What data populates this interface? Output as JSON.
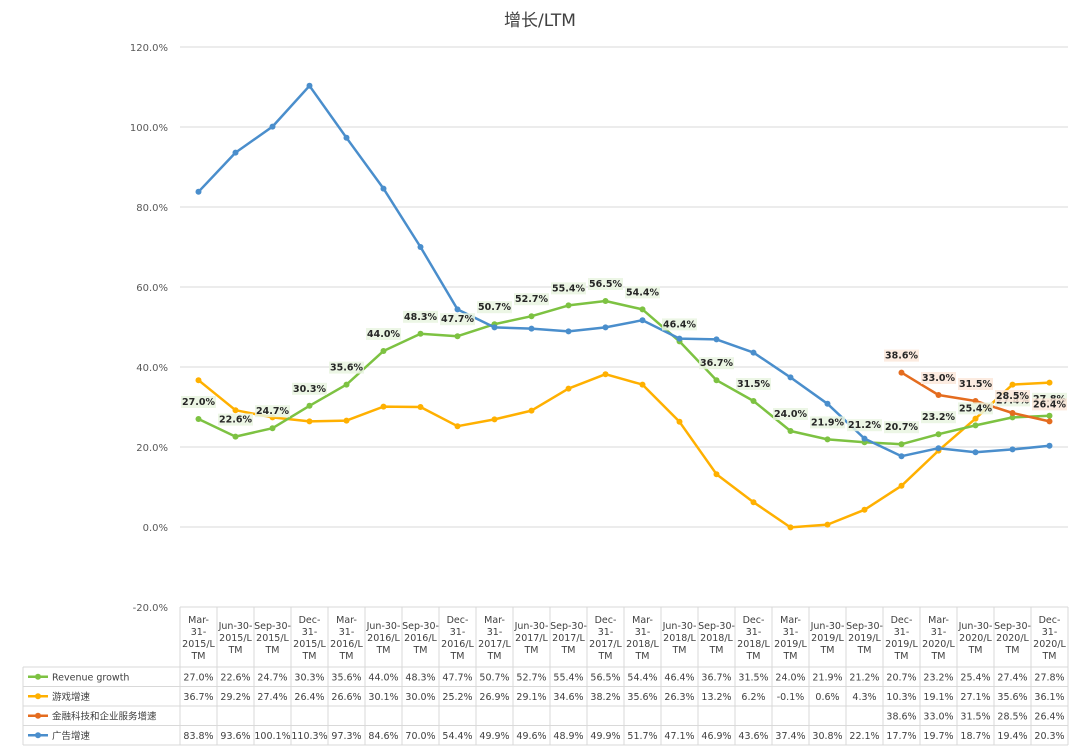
{
  "chart_data": {
    "type": "line",
    "title": "增长/LTM",
    "ylim": [
      -20,
      120
    ],
    "y_ticks": [
      "-20.0%",
      "0.0%",
      "20.0%",
      "40.0%",
      "60.0%",
      "80.0%",
      "100.0%",
      "120.0%"
    ],
    "y_tick_values": [
      -20,
      0,
      20,
      40,
      60,
      80,
      100,
      120
    ],
    "grid": true,
    "legend": "data-table-bottom",
    "categories": [
      [
        "Mar-",
        "31-",
        "2015/L",
        "TM"
      ],
      [
        "Jun-30-",
        "2015/L",
        "TM"
      ],
      [
        "Sep-30-",
        "2015/L",
        "TM"
      ],
      [
        "Dec-",
        "31-",
        "2015/L",
        "TM"
      ],
      [
        "Mar-",
        "31-",
        "2016/L",
        "TM"
      ],
      [
        "Jun-30-",
        "2016/L",
        "TM"
      ],
      [
        "Sep-30-",
        "2016/L",
        "TM"
      ],
      [
        "Dec-",
        "31-",
        "2016/L",
        "TM"
      ],
      [
        "Mar-",
        "31-",
        "2017/L",
        "TM"
      ],
      [
        "Jun-30-",
        "2017/L",
        "TM"
      ],
      [
        "Sep-30-",
        "2017/L",
        "TM"
      ],
      [
        "Dec-",
        "31-",
        "2017/L",
        "TM"
      ],
      [
        "Mar-",
        "31-",
        "2018/L",
        "TM"
      ],
      [
        "Jun-30-",
        "2018/L",
        "TM"
      ],
      [
        "Sep-30-",
        "2018/L",
        "TM"
      ],
      [
        "Dec-",
        "31-",
        "2018/L",
        "TM"
      ],
      [
        "Mar-",
        "31-",
        "2019/L",
        "TM"
      ],
      [
        "Jun-30-",
        "2019/L",
        "TM"
      ],
      [
        "Sep-30-",
        "2019/L",
        "TM"
      ],
      [
        "Dec-",
        "31-",
        "2019/L",
        "TM"
      ],
      [
        "Mar-",
        "31-",
        "2020/L",
        "TM"
      ],
      [
        "Jun-30-",
        "2020/L",
        "TM"
      ],
      [
        "Sep-30-",
        "2020/L",
        "TM"
      ],
      [
        "Dec-",
        "31-",
        "2020/L",
        "TM"
      ]
    ],
    "series": [
      {
        "name": "Revenue growth",
        "color": "#7DC242",
        "labeled": true,
        "values": [
          27.0,
          22.6,
          24.7,
          30.3,
          35.6,
          44.0,
          48.3,
          47.7,
          50.7,
          52.7,
          55.4,
          56.5,
          54.4,
          46.4,
          36.7,
          31.5,
          24.0,
          21.9,
          21.2,
          20.7,
          23.2,
          25.4,
          27.4,
          27.8
        ],
        "display": [
          "27.0%",
          "22.6%",
          "24.7%",
          "30.3%",
          "35.6%",
          "44.0%",
          "48.3%",
          "47.7%",
          "50.7%",
          "52.7%",
          "55.4%",
          "56.5%",
          "54.4%",
          "46.4%",
          "36.7%",
          "31.5%",
          "24.0%",
          "21.9%",
          "21.2%",
          "20.7%",
          "23.2%",
          "25.4%",
          "27.4%",
          "27.8%"
        ]
      },
      {
        "name": "游戏增速",
        "color": "#FFB000",
        "labeled": false,
        "values": [
          36.7,
          29.2,
          27.4,
          26.4,
          26.6,
          30.1,
          30.0,
          25.2,
          26.9,
          29.1,
          34.6,
          38.2,
          35.6,
          26.3,
          13.2,
          6.2,
          -0.1,
          0.6,
          4.3,
          10.3,
          19.1,
          27.1,
          35.6,
          36.1
        ],
        "display": [
          "36.7%",
          "29.2%",
          "27.4%",
          "26.4%",
          "26.6%",
          "30.1%",
          "30.0%",
          "25.2%",
          "26.9%",
          "29.1%",
          "34.6%",
          "38.2%",
          "35.6%",
          "26.3%",
          "13.2%",
          "6.2%",
          "-0.1%",
          "0.6%",
          "4.3%",
          "10.3%",
          "19.1%",
          "27.1%",
          "35.6%",
          "36.1%"
        ]
      },
      {
        "name": "金融科技和企业服务增速",
        "color": "#E46C1F",
        "labeled": true,
        "values": [
          null,
          null,
          null,
          null,
          null,
          null,
          null,
          null,
          null,
          null,
          null,
          null,
          null,
          null,
          null,
          null,
          null,
          null,
          null,
          38.6,
          33.0,
          31.5,
          28.5,
          26.4
        ],
        "display": [
          "",
          "",
          "",
          "",
          "",
          "",
          "",
          "",
          "",
          "",
          "",
          "",
          "",
          "",
          "",
          "",
          "",
          "",
          "",
          "38.6%",
          "33.0%",
          "31.5%",
          "28.5%",
          "26.4%"
        ]
      },
      {
        "name": "广告增速",
        "color": "#4A8ECC",
        "labeled": false,
        "values": [
          83.8,
          93.6,
          100.1,
          110.3,
          97.3,
          84.6,
          70.0,
          54.4,
          49.9,
          49.6,
          48.9,
          49.9,
          51.7,
          47.1,
          46.9,
          43.6,
          37.4,
          30.8,
          22.1,
          17.7,
          19.7,
          18.7,
          19.4,
          20.3
        ],
        "display": [
          "83.8%",
          "93.6%",
          "100.1%",
          "110.3%",
          "97.3%",
          "84.6%",
          "70.0%",
          "54.4%",
          "49.9%",
          "49.6%",
          "48.9%",
          "49.9%",
          "51.7%",
          "47.1%",
          "46.9%",
          "43.6%",
          "37.4%",
          "30.8%",
          "22.1%",
          "17.7%",
          "19.7%",
          "18.7%",
          "19.4%",
          "20.3%"
        ]
      }
    ]
  }
}
